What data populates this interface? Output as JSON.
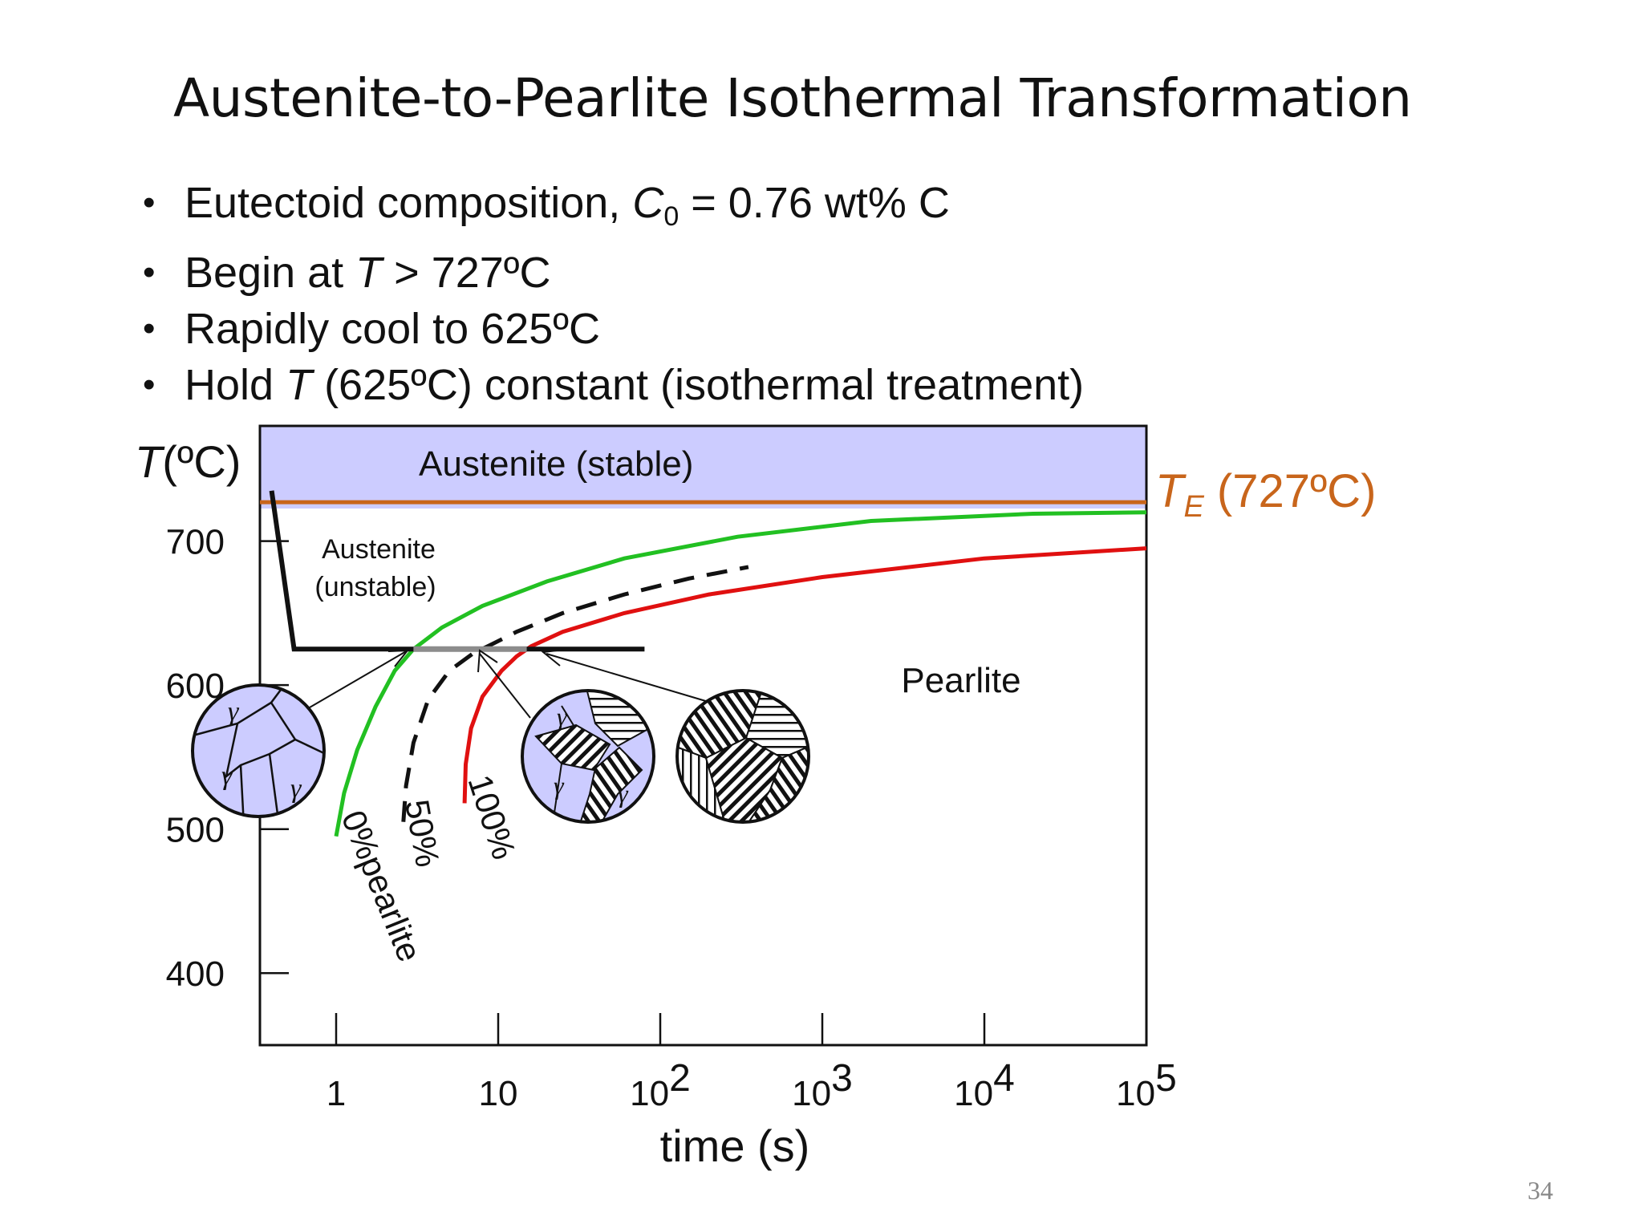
{
  "title": "Austenite-to-Pearlite Isothermal Transformation",
  "bullets": [
    {
      "before": "Eutectoid composition, ",
      "italic": "C",
      "sub": "0",
      "after": " = 0.76 wt% C"
    },
    {
      "before": "Begin at ",
      "italic": "T",
      "sub": "",
      "after": " > 727ºC"
    },
    {
      "before": "Rapidly cool to 625ºC",
      "italic": "",
      "sub": "",
      "after": ""
    },
    {
      "before": "Hold ",
      "italic": "T",
      "sub": "",
      "after": " (625ºC) constant (isothermal treatment)"
    }
  ],
  "page_number": "34",
  "chart_data": {
    "type": "line",
    "title": "",
    "xlabel": "time (s)",
    "ylabel": {
      "italic": "T",
      "rest": "(ºC)"
    },
    "x_scale": "log",
    "xlim": [
      0.4,
      100000
    ],
    "ylim": [
      350,
      780
    ],
    "x_ticks": [
      {
        "value": 1,
        "base": "1",
        "exp": ""
      },
      {
        "value": 10,
        "base": "10",
        "exp": ""
      },
      {
        "value": 100,
        "base": "10",
        "exp": "2"
      },
      {
        "value": 1000,
        "base": "10",
        "exp": "3"
      },
      {
        "value": 10000,
        "base": "10",
        "exp": "4"
      },
      {
        "value": 100000,
        "base": "10",
        "exp": "5"
      }
    ],
    "y_ticks": [
      400,
      500,
      600,
      700
    ],
    "eutectoid_line": {
      "value": 727,
      "label_italic": "T",
      "label_sub": "E",
      "label_rest": " (727ºC)",
      "color": "#c8651b"
    },
    "stable_region": {
      "label": "Austenite (stable)",
      "color": "#ccccff",
      "from": 727
    },
    "region_labels": {
      "unstable_line1": "Austenite",
      "unstable_line2": "(unstable)",
      "pearlite": "Pearlite"
    },
    "series": [
      {
        "name": "0%pearlite",
        "color": "#22c022",
        "dash": false,
        "x": [
          1,
          1.12,
          1.35,
          1.75,
          2.3,
          3,
          4.5,
          8,
          20,
          60,
          300,
          2000,
          20000,
          100000
        ],
        "y": [
          495,
          525,
          555,
          585,
          610,
          625,
          640,
          655,
          672,
          688,
          703,
          714,
          719,
          720
        ]
      },
      {
        "name": "50%",
        "color": "#111111",
        "dash": true,
        "x": [
          2.6,
          2.7,
          3,
          3.7,
          5,
          7,
          9,
          13,
          25,
          60,
          150,
          350
        ],
        "y": [
          505,
          530,
          560,
          590,
          610,
          622,
          628,
          637,
          650,
          663,
          674,
          682
        ]
      },
      {
        "name": "100%",
        "color": "#e01010",
        "dash": false,
        "x": [
          6.2,
          6.3,
          6.8,
          8,
          10.5,
          13,
          16,
          25,
          60,
          200,
          1000,
          10000,
          100000
        ],
        "y": [
          518,
          545,
          570,
          592,
          610,
          620,
          627,
          637,
          650,
          663,
          675,
          688,
          695
        ]
      }
    ],
    "cooling_path": {
      "x": [
        0.4,
        0.55,
        80
      ],
      "y": [
        735,
        625,
        625
      ],
      "transforming_segment": {
        "from": 3,
        "to": 15
      },
      "color": "#111111",
      "segment_color": "#8c8c8c"
    },
    "microstructures": [
      {
        "label": "austenite grains",
        "grain_symbol": "γ",
        "pointer_target_x": 3
      },
      {
        "label": "partially transformed",
        "grain_symbol": "γ",
        "pointer_target_x": 7.5
      },
      {
        "label": "fully pearlite",
        "grain_symbol": "",
        "pointer_target_x": 15
      }
    ]
  }
}
